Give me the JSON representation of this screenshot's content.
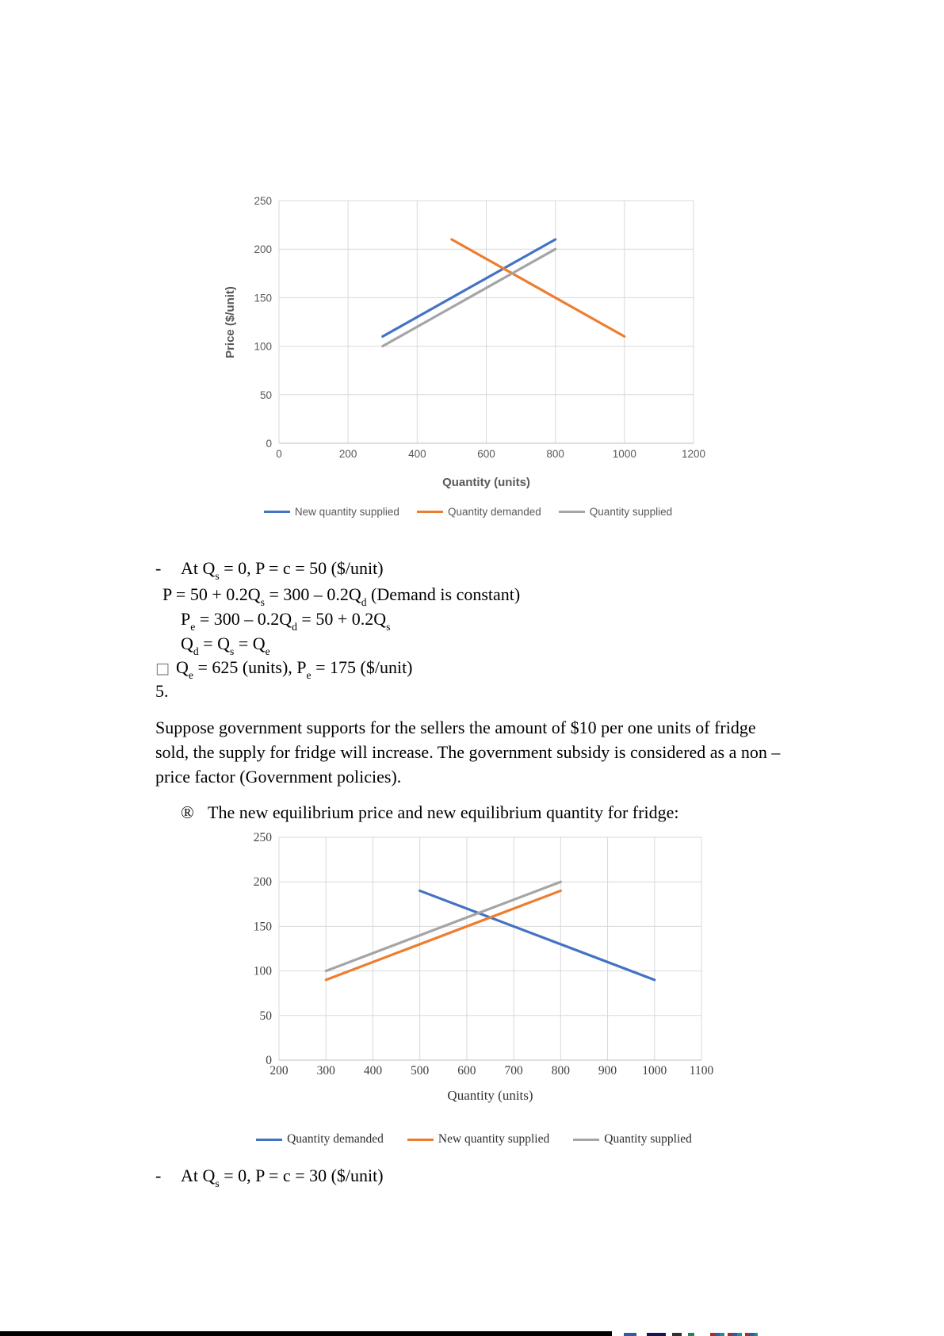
{
  "page_background": "#ffffff",
  "chart_data": [
    {
      "type": "line",
      "title": "",
      "xlabel": "Quantity (units)",
      "ylabel": "Price ($/unit)",
      "xlim": [
        0,
        1200
      ],
      "ylim": [
        0,
        250
      ],
      "xticks": [
        0,
        200,
        400,
        600,
        800,
        1000,
        1200
      ],
      "yticks": [
        0,
        50,
        100,
        150,
        200,
        250
      ],
      "grid": true,
      "legend_position": "bottom",
      "series": [
        {
          "name": "New quantity supplied",
          "color": "#4472C4",
          "points": [
            [
              300,
              110
            ],
            [
              800,
              210
            ]
          ]
        },
        {
          "name": "Quantity demanded",
          "color": "#ED7D31",
          "points": [
            [
              500,
              210
            ],
            [
              1000,
              110
            ]
          ]
        },
        {
          "name": "Quantity supplied",
          "color": "#A5A5A5",
          "points": [
            [
              300,
              100
            ],
            [
              800,
              200
            ]
          ]
        }
      ]
    },
    {
      "type": "line",
      "title": "",
      "xlabel": "Quantity (units)",
      "ylabel": "",
      "xlim": [
        200,
        1100
      ],
      "ylim": [
        0,
        250
      ],
      "xticks": [
        200,
        300,
        400,
        500,
        600,
        700,
        800,
        900,
        1000,
        1100
      ],
      "yticks": [
        0,
        50,
        100,
        150,
        200,
        250
      ],
      "grid": true,
      "legend_position": "bottom",
      "series": [
        {
          "name": "Quantity demanded",
          "color": "#4472C4",
          "points": [
            [
              500,
              190
            ],
            [
              1000,
              90
            ]
          ]
        },
        {
          "name": "New quantity supplied",
          "color": "#ED7D31",
          "points": [
            [
              300,
              90
            ],
            [
              800,
              190
            ]
          ]
        },
        {
          "name": "Quantity supplied",
          "color": "#A5A5A5",
          "points": [
            [
              300,
              100
            ],
            [
              800,
              200
            ]
          ]
        }
      ]
    }
  ],
  "document": {
    "line1_marker": "-",
    "line1": [
      {
        "t": "At Q"
      },
      {
        "t": "s",
        "s": true
      },
      {
        "t": " = 0, P = c = 50 ($/unit)"
      }
    ],
    "line2": [
      {
        "t": "P = 50 + 0.2Q"
      },
      {
        "t": "s",
        "s": true
      },
      {
        "t": " = 300 – 0.2Q"
      },
      {
        "t": "d",
        "s": true
      },
      {
        "t": " (Demand is constant)"
      }
    ],
    "line3": [
      {
        "t": "P"
      },
      {
        "t": "e",
        "s": true
      },
      {
        "t": " = 300 – 0.2Q"
      },
      {
        "t": "d",
        "s": true
      },
      {
        "t": " = 50 + 0.2Q"
      },
      {
        "t": "s",
        "s": true
      }
    ],
    "line4": [
      {
        "t": "Q"
      },
      {
        "t": "d",
        "s": true
      },
      {
        "t": " = Q"
      },
      {
        "t": "s",
        "s": true
      },
      {
        "t": " = Q"
      },
      {
        "t": "e",
        "s": true
      }
    ],
    "line5_marker": "□",
    "line5": [
      {
        "t": "Q"
      },
      {
        "t": "e",
        "s": true
      },
      {
        "t": " = 625 (units), P"
      },
      {
        "t": "e",
        "s": true
      },
      {
        "t": " = 175 ($/unit)"
      }
    ],
    "item_number": "5.",
    "paragraph": [
      "Suppose government supports for the sellers the amount of $10 per one units of fridge",
      "sold, the supply for fridge will increase. The government subsidy is considered as a non –",
      "price factor (Government policies)."
    ],
    "arrow_marker": "®",
    "arrow_line": "The new equilibrium price and new equilibrium quantity for fridge:",
    "last_line_marker": "-",
    "last_line": [
      {
        "t": "At Q"
      },
      {
        "t": "s",
        "s": true
      },
      {
        "t": " = 0, P = c = 30 ($/unit)"
      }
    ]
  },
  "colors": {
    "blue": "#4472C4",
    "orange": "#ED7D31",
    "gray": "#A5A5A5",
    "gridline": "#D9D9D9",
    "axis": "#BFBFBF"
  }
}
